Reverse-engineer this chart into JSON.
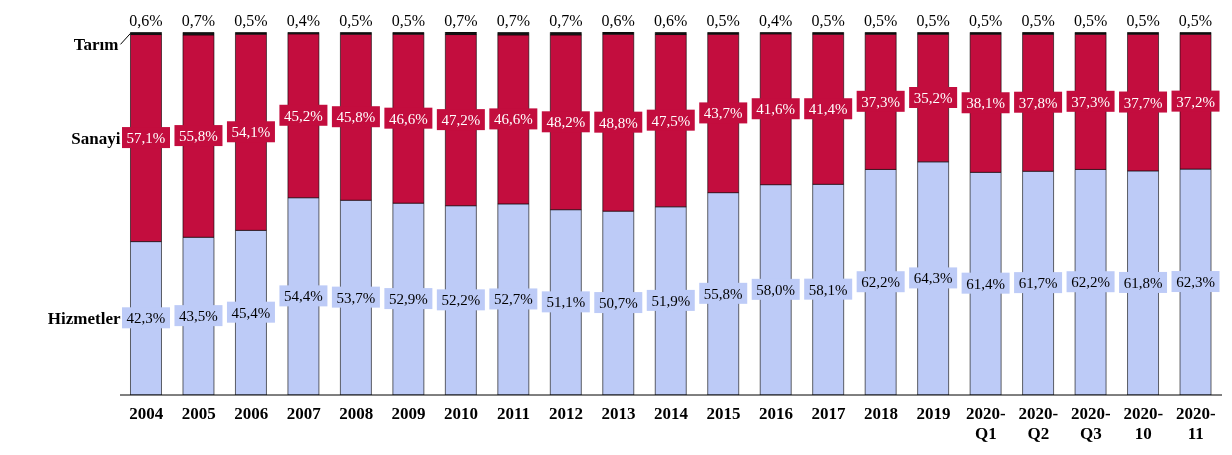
{
  "chart_data": {
    "type": "bar",
    "stacked": true,
    "legend": "left",
    "categories": [
      "2004",
      "2005",
      "2006",
      "2007",
      "2008",
      "2009",
      "2010",
      "2011",
      "2012",
      "2013",
      "2014",
      "2015",
      "2016",
      "2017",
      "2018",
      "2019",
      "2020-Q1",
      "2020-Q2",
      "2020-Q3",
      "2020-10",
      "2020-11"
    ],
    "series": [
      {
        "name": "Hizmetler",
        "color": "#bdcbf7",
        "values": [
          42.3,
          43.5,
          45.4,
          54.4,
          53.7,
          52.9,
          52.2,
          52.7,
          51.1,
          50.7,
          51.9,
          55.8,
          58.0,
          58.1,
          62.2,
          64.3,
          61.4,
          61.7,
          62.2,
          61.8,
          62.3
        ],
        "value_labels": [
          "42,3%",
          "43,5%",
          "45,4%",
          "54,4%",
          "53,7%",
          "52,9%",
          "52,2%",
          "52,7%",
          "51,1%",
          "50,7%",
          "51,9%",
          "55,8%",
          "58,0%",
          "58,1%",
          "62,2%",
          "64,3%",
          "61,4%",
          "61,7%",
          "62,2%",
          "61,8%",
          "62,3%"
        ]
      },
      {
        "name": "Sanayi",
        "color": "#c30d3e",
        "values": [
          57.1,
          55.8,
          54.1,
          45.2,
          45.8,
          46.6,
          47.2,
          46.6,
          48.2,
          48.8,
          47.5,
          43.7,
          41.6,
          41.4,
          37.3,
          35.2,
          38.1,
          37.8,
          37.3,
          37.7,
          37.2
        ],
        "value_labels": [
          "57,1%",
          "55,8%",
          "54,1%",
          "45,2%",
          "45,8%",
          "46,6%",
          "47,2%",
          "46,6%",
          "48,2%",
          "48,8%",
          "47,5%",
          "43,7%",
          "41,6%",
          "41,4%",
          "37,3%",
          "35,2%",
          "38,1%",
          "37,8%",
          "37,3%",
          "37,7%",
          "37,2%"
        ]
      },
      {
        "name": "Tarım",
        "color": "#111111",
        "values": [
          0.6,
          0.7,
          0.5,
          0.4,
          0.5,
          0.5,
          0.7,
          0.7,
          0.7,
          0.6,
          0.6,
          0.5,
          0.4,
          0.5,
          0.5,
          0.5,
          0.5,
          0.5,
          0.5,
          0.5,
          0.5
        ],
        "value_labels": [
          "0,6%",
          "0,7%",
          "0,5%",
          "0,4%",
          "0,5%",
          "0,5%",
          "0,7%",
          "0,7%",
          "0,7%",
          "0,6%",
          "0,6%",
          "0,5%",
          "0,4%",
          "0,5%",
          "0,5%",
          "0,5%",
          "0,5%",
          "0,5%",
          "0,5%",
          "0,5%",
          "0,5%"
        ]
      }
    ]
  }
}
